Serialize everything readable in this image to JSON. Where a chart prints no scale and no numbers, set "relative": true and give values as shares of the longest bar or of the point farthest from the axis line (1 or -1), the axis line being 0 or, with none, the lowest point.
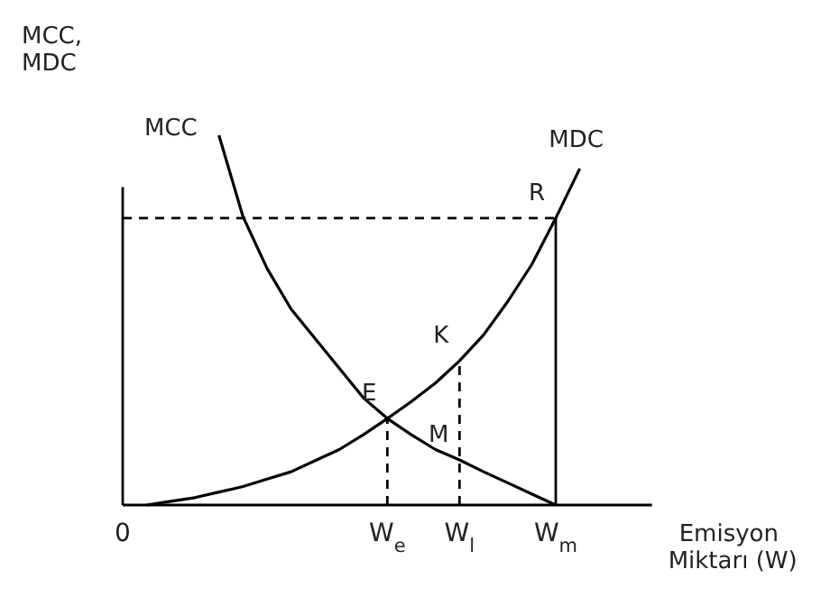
{
  "chart_data": {
    "type": "line",
    "relative": true,
    "ylabel": "MCC, MDC",
    "xlabel": "Emisyon Miktarı (W)",
    "categories": [
      "0",
      null,
      null,
      null,
      null,
      null,
      null,
      null,
      null,
      null,
      null,
      "W$_{e}$",
      null,
      null,
      "W$_{l}$",
      null,
      null,
      null,
      "W$_{m}$",
      null,
      null,
      null,
      null
    ],
    "series": [
      {
        "name": "MCC",
        "color": "#000000",
        "values": [
          null,
          null,
          null,
          null,
          1,
          0.78,
          0.64,
          0.53,
          0.45,
          0.37,
          0.29,
          0.234,
          0.19,
          0.15,
          0.122,
          0.09,
          0.06,
          0.03,
          0,
          null,
          null,
          null,
          null
        ]
      },
      {
        "name": "MDC",
        "color": "#000000",
        "values": [
          null,
          0,
          0.01,
          0.02,
          0.035,
          0.05,
          0.07,
          0.09,
          0.12,
          0.15,
          0.19,
          0.234,
          0.28,
          0.33,
          0.39,
          0.46,
          0.55,
          0.65,
          0.776,
          0.91,
          null,
          null,
          null
        ]
      }
    ],
    "ref_lines": [
      {
        "axis": "y",
        "value": 0.776,
        "line_style": "dashed"
      },
      {
        "axis": "x",
        "value": "W$_{e}$",
        "line_style": "dashed"
      },
      {
        "axis": "x",
        "value": "W$_{l}$",
        "line_style": "dashed"
      },
      {
        "axis": "x",
        "value": "W$_{m}$",
        "line_style": "solid"
      }
    ],
    "annotations": [
      {
        "text": "E",
        "x": "W$_{e}$",
        "y": 0.234
      },
      {
        "text": "K",
        "x": "W$_{l}$",
        "y": 0.39
      },
      {
        "text": "M",
        "x": "W$_{l}$",
        "y": 0.122
      },
      {
        "text": "R",
        "x": "W$_{m}$",
        "y": 0.776
      }
    ],
    "marker": "none",
    "line_style": "solid",
    "grid": false,
    "legend": false
  }
}
